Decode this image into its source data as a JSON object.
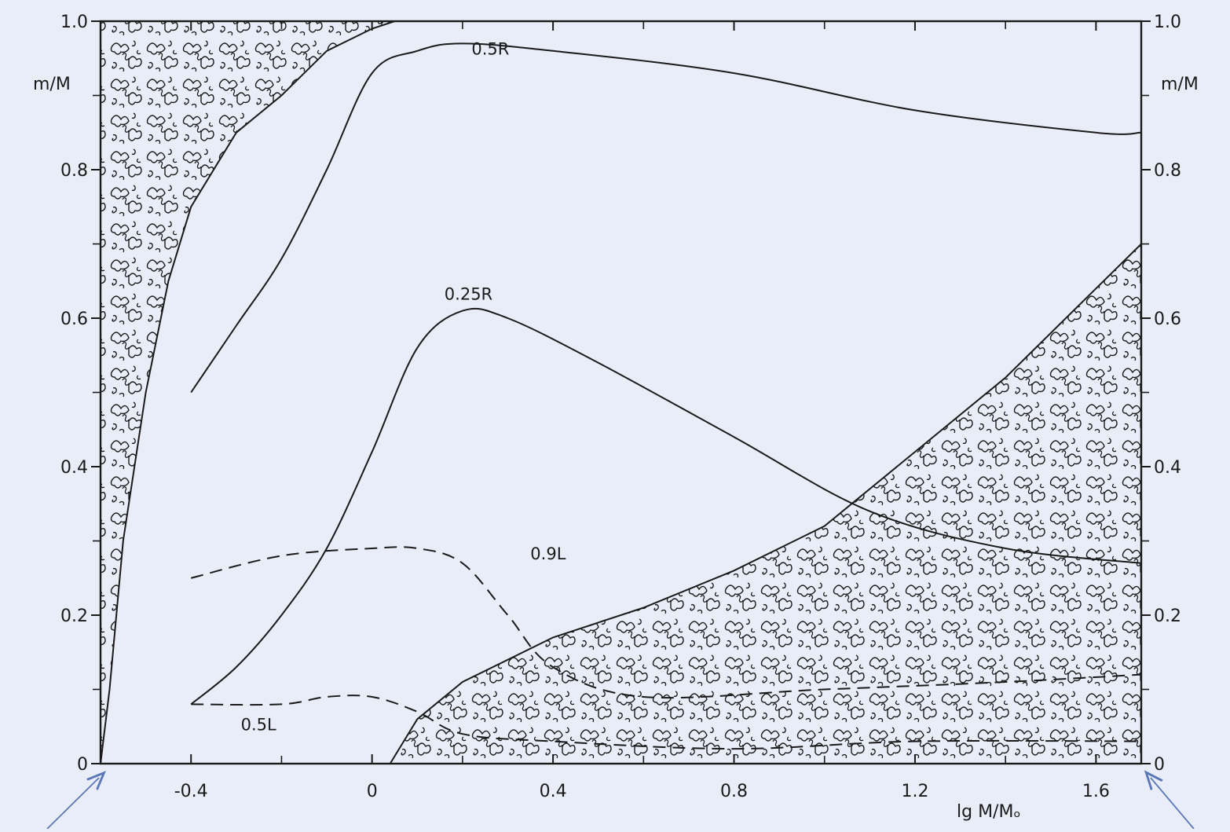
{
  "chart_data": {
    "type": "line",
    "title": "",
    "xlabel": "lg M/Mₒ",
    "ylabel_left": "m/M",
    "ylabel_right": "m/M",
    "xlim": [
      -0.6,
      1.7
    ],
    "ylim": [
      0,
      1.0
    ],
    "x_ticks": [
      -0.4,
      0,
      0.4,
      0.8,
      1.2,
      1.6
    ],
    "x_tick_labels": [
      "-0.4",
      "0",
      "0.4",
      "0.8",
      "1.2",
      "1.6"
    ],
    "y_ticks": [
      0,
      0.2,
      0.4,
      0.6,
      0.8,
      1.0
    ],
    "y_tick_labels": [
      "0",
      "0.2",
      "0.4",
      "0.6",
      "0.8",
      "1.0"
    ],
    "grid": false,
    "series": [
      {
        "name": "0.5R",
        "style": "solid",
        "x": [
          -0.4,
          -0.3,
          -0.2,
          -0.1,
          0.0,
          0.1,
          0.2,
          0.4,
          0.8,
          1.2,
          1.6,
          1.7
        ],
        "y": [
          0.5,
          0.59,
          0.68,
          0.8,
          0.93,
          0.96,
          0.97,
          0.96,
          0.93,
          0.88,
          0.85,
          0.85
        ]
      },
      {
        "name": "0.25R",
        "style": "solid",
        "x": [
          -0.4,
          -0.3,
          -0.2,
          -0.1,
          0.0,
          0.1,
          0.2,
          0.3,
          0.5,
          0.8,
          1.1,
          1.4,
          1.7
        ],
        "y": [
          0.08,
          0.13,
          0.2,
          0.29,
          0.42,
          0.56,
          0.61,
          0.6,
          0.54,
          0.44,
          0.34,
          0.29,
          0.27
        ]
      },
      {
        "name": "0.9L",
        "style": "dashed",
        "x": [
          -0.4,
          -0.2,
          0.0,
          0.1,
          0.2,
          0.3,
          0.4,
          0.6,
          1.0,
          1.4,
          1.7
        ],
        "y": [
          0.25,
          0.28,
          0.29,
          0.29,
          0.27,
          0.2,
          0.13,
          0.09,
          0.1,
          0.11,
          0.12
        ]
      },
      {
        "name": "0.5L",
        "style": "dashed",
        "x": [
          -0.4,
          -0.2,
          -0.1,
          0.0,
          0.1,
          0.2,
          0.4,
          0.8,
          1.2,
          1.7
        ],
        "y": [
          0.08,
          0.08,
          0.09,
          0.09,
          0.07,
          0.04,
          0.03,
          0.02,
          0.03,
          0.03
        ]
      }
    ],
    "regions": [
      {
        "name": "outer-convection-zone",
        "x": [
          -0.6,
          -0.58,
          -0.55,
          -0.5,
          -0.45,
          -0.4,
          -0.3,
          -0.2,
          -0.1,
          0.0,
          0.05,
          0.1,
          -0.6
        ],
        "y": [
          0.0,
          0.1,
          0.3,
          0.5,
          0.65,
          0.75,
          0.85,
          0.9,
          0.96,
          0.99,
          1.0,
          1.0,
          1.0
        ]
      },
      {
        "name": "convective-core",
        "x": [
          0.04,
          0.1,
          0.2,
          0.4,
          0.6,
          0.8,
          1.0,
          1.2,
          1.4,
          1.6,
          1.7,
          1.7,
          0.04
        ],
        "y": [
          0.0,
          0.06,
          0.11,
          0.17,
          0.21,
          0.26,
          0.32,
          0.42,
          0.52,
          0.64,
          0.7,
          0.0,
          0.0
        ]
      }
    ]
  }
}
